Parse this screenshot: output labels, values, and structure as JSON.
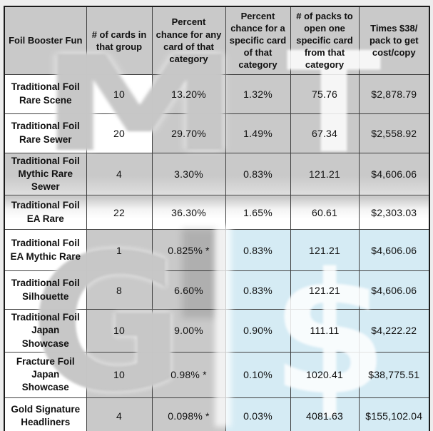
{
  "colors": {
    "page_bg": "#ededed",
    "cell_gray": "#c9c9c9",
    "cell_blue": "#d5ebf4",
    "cell_white": "#ffffff",
    "grid_border": "#3f3f3f",
    "outer_border": "#1a1a1a",
    "watermark_face": "#c5c5c5",
    "watermark_glow": "#ffffff",
    "text": "#101010"
  },
  "watermark": {
    "letter_m": "M",
    "letter_t": "T",
    "letter_g": "G",
    "letter_dollar": "$"
  },
  "table": {
    "columns": [
      {
        "label": "Foil Booster Fun"
      },
      {
        "label": "# of cards in that group"
      },
      {
        "label": "Percent chance for any card of that category"
      },
      {
        "label": "Percent chance for a specific card of that category"
      },
      {
        "label": "# of packs to open one specific card from that category"
      },
      {
        "label": "Times $38/ pack to get cost/copy"
      }
    ],
    "rows": [
      {
        "style": "plain",
        "label": "Traditional Foil Rare Scene",
        "cards": "10",
        "any_chance": "13.20%",
        "specific_chance": "1.32%",
        "packs": "75.76",
        "cost": "$2,878.79"
      },
      {
        "style": "plain",
        "label": "Traditional Foil Rare Sewer",
        "cards": "20",
        "any_chance": "29.70%",
        "specific_chance": "1.49%",
        "packs": "67.34",
        "cost": "$2,558.92"
      },
      {
        "style": "gray",
        "label": "Traditional Foil Mythic Rare Sewer",
        "cards": "4",
        "any_chance": "3.30%",
        "specific_chance": "0.83%",
        "packs": "121.21",
        "cost": "$4,606.06"
      },
      {
        "style": "glare",
        "label": "Traditional Foil EA Rare",
        "cards": "22",
        "any_chance": "36.30%",
        "specific_chance": "1.65%",
        "packs": "60.61",
        "cost": "$2,303.03"
      },
      {
        "style": "blue",
        "label": "Traditional Foil EA Mythic Rare",
        "cards": "1",
        "any_chance": "0.825% *",
        "specific_chance": "0.83%",
        "packs": "121.21",
        "cost": "$4,606.06"
      },
      {
        "style": "blue",
        "label": "Traditional Foil Silhouette",
        "cards": "8",
        "any_chance": "6.60%",
        "specific_chance": "0.83%",
        "packs": "121.21",
        "cost": "$4,606.06"
      },
      {
        "style": "blue",
        "label": "Traditional Foil Japan Showcase",
        "cards": "10",
        "any_chance": "9.00%",
        "specific_chance": "0.90%",
        "packs": "111.11",
        "cost": "$4,222.22"
      },
      {
        "style": "blue",
        "label": "Fracture Foil Japan Showcase",
        "cards": "10",
        "any_chance": "0.98% *",
        "specific_chance": "0.10%",
        "packs": "1020.41",
        "cost": "$38,775.51"
      },
      {
        "style": "blue",
        "label": "Gold Signature Headliners",
        "cards": "4",
        "any_chance": "0.098% *",
        "specific_chance": "0.03%",
        "packs": "4081.63",
        "cost": "$155,102.04"
      }
    ]
  },
  "chart_data": {
    "type": "table",
    "title": "Foil Booster Fun pull rates and cost per copy at $38/pack",
    "columns": [
      "Foil Booster Fun",
      "# of cards in that group",
      "Percent chance for any card of that category",
      "Percent chance for a specific card of that category",
      "# of packs to open one specific card from that category",
      "Times $38/ pack to get cost/copy"
    ],
    "rows": [
      [
        "Traditional Foil Rare Scene",
        10,
        "13.20%",
        "1.32%",
        75.76,
        "$2,878.79"
      ],
      [
        "Traditional Foil Rare Sewer",
        20,
        "29.70%",
        "1.49%",
        67.34,
        "$2,558.92"
      ],
      [
        "Traditional Foil Mythic Rare Sewer",
        4,
        "3.30%",
        "0.83%",
        121.21,
        "$4,606.06"
      ],
      [
        "Traditional Foil EA Rare",
        22,
        "36.30%",
        "1.65%",
        60.61,
        "$2,303.03"
      ],
      [
        "Traditional Foil EA Mythic Rare",
        1,
        "0.825% *",
        "0.83%",
        121.21,
        "$4,606.06"
      ],
      [
        "Traditional Foil Silhouette",
        8,
        "6.60%",
        "0.83%",
        121.21,
        "$4,606.06"
      ],
      [
        "Traditional Foil Japan Showcase",
        10,
        "9.00%",
        "0.90%",
        111.11,
        "$4,222.22"
      ],
      [
        "Fracture Foil Japan Showcase",
        10,
        "0.98% *",
        "0.10%",
        1020.41,
        "$38,775.51"
      ],
      [
        "Gold Signature Headliners",
        4,
        "0.098% *",
        "0.03%",
        4081.63,
        "$155,102.04"
      ]
    ]
  }
}
